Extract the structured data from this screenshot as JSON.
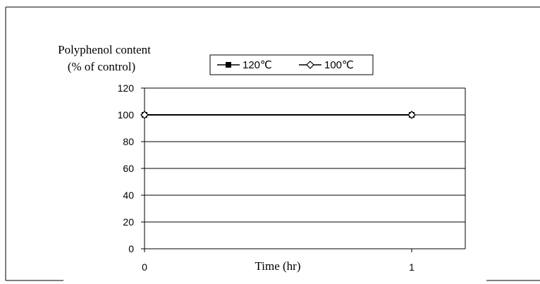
{
  "chart_data": {
    "type": "line",
    "ylabel_lines": [
      "Polyphenol content",
      "(% of control)"
    ],
    "xlabel": "Time (hr)",
    "x": [
      0,
      1
    ],
    "xticks": [
      "0",
      "1"
    ],
    "ylim": [
      0,
      120
    ],
    "yticks": [
      0,
      20,
      40,
      60,
      80,
      100,
      120
    ],
    "grid": true,
    "legend_position": "top-center",
    "series": [
      {
        "name": "120℃",
        "marker": "filled-square",
        "color": "#000000",
        "values": [
          100,
          100
        ]
      },
      {
        "name": "100℃",
        "marker": "open-diamond",
        "color": "#000000",
        "values": [
          100,
          100
        ]
      }
    ]
  }
}
